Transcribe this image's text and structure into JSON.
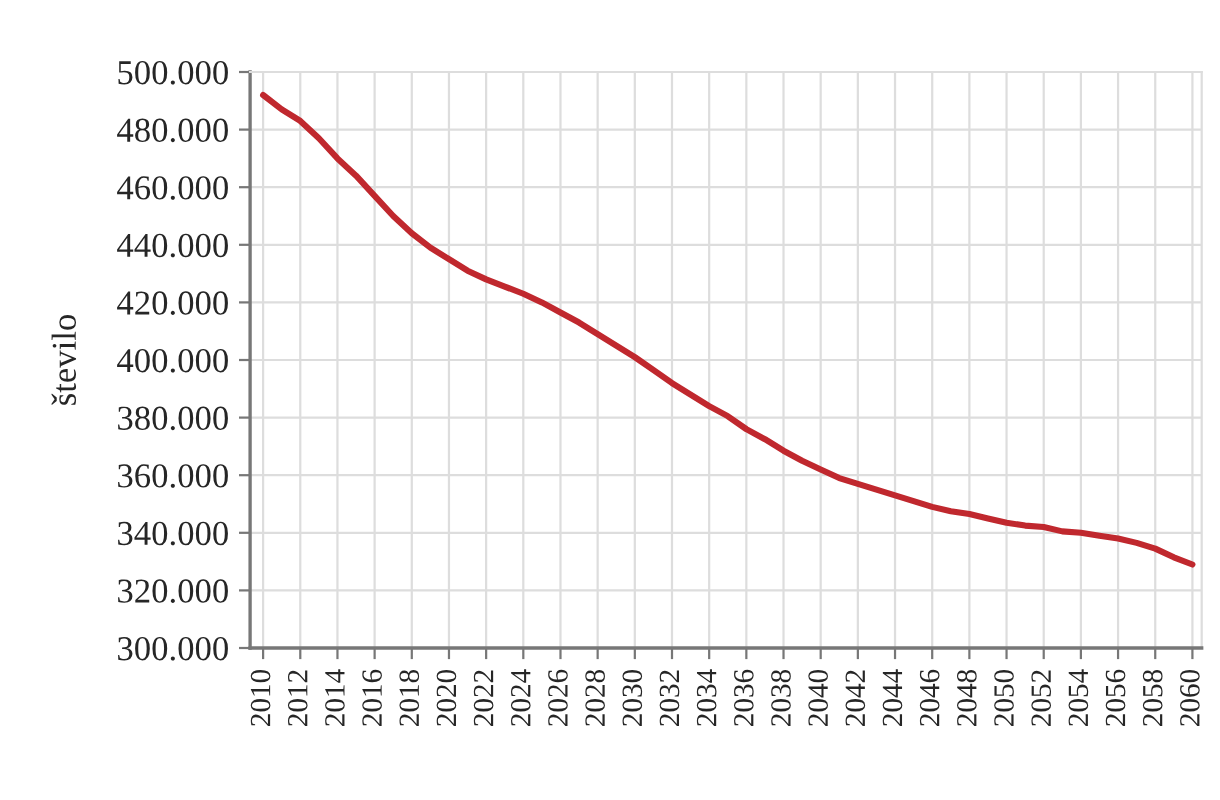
{
  "chart_data": {
    "type": "line",
    "ylabel": "število",
    "x": [
      2010,
      2011,
      2012,
      2013,
      2014,
      2015,
      2016,
      2017,
      2018,
      2019,
      2020,
      2021,
      2022,
      2023,
      2024,
      2025,
      2026,
      2027,
      2028,
      2029,
      2030,
      2031,
      2032,
      2033,
      2034,
      2035,
      2036,
      2037,
      2038,
      2039,
      2040,
      2041,
      2042,
      2043,
      2044,
      2045,
      2046,
      2047,
      2048,
      2049,
      2050,
      2051,
      2052,
      2053,
      2054,
      2055,
      2056,
      2057,
      2058,
      2059,
      2060
    ],
    "series": [
      {
        "color": "#c0282e",
        "values": [
          492000,
          487000,
          483000,
          477000,
          470000,
          464000,
          457000,
          450000,
          444000,
          439000,
          435000,
          431000,
          428000,
          425500,
          423000,
          420000,
          416500,
          413000,
          409000,
          405000,
          401000,
          396500,
          392000,
          388000,
          384000,
          380500,
          376000,
          372500,
          368500,
          365000,
          362000,
          359000,
          357000,
          355000,
          353000,
          351000,
          349000,
          347500,
          346500,
          345000,
          343500,
          342500,
          342000,
          340500,
          340000,
          339000,
          338000,
          336500,
          334500,
          331500,
          329000
        ]
      }
    ],
    "xlim": [
      2009.3,
      2060.5
    ],
    "xticks": [
      2010,
      2012,
      2014,
      2016,
      2018,
      2020,
      2022,
      2024,
      2026,
      2028,
      2030,
      2032,
      2034,
      2036,
      2038,
      2040,
      2042,
      2044,
      2046,
      2048,
      2050,
      2052,
      2054,
      2056,
      2058,
      2060
    ],
    "ylim": [
      300000,
      500000
    ],
    "yticks": [
      {
        "value": 300000,
        "label": "300.000"
      },
      {
        "value": 320000,
        "label": "320.000"
      },
      {
        "value": 340000,
        "label": "340.000"
      },
      {
        "value": 360000,
        "label": "360.000"
      },
      {
        "value": 380000,
        "label": "380.000"
      },
      {
        "value": 400000,
        "label": "400.000"
      },
      {
        "value": 420000,
        "label": "420.000"
      },
      {
        "value": 440000,
        "label": "440.000"
      },
      {
        "value": 460000,
        "label": "460.000"
      },
      {
        "value": 480000,
        "label": "480.000"
      },
      {
        "value": 500000,
        "label": "500.000"
      }
    ],
    "grid": true,
    "legend": false,
    "marker": "none",
    "line_style": "solid"
  }
}
